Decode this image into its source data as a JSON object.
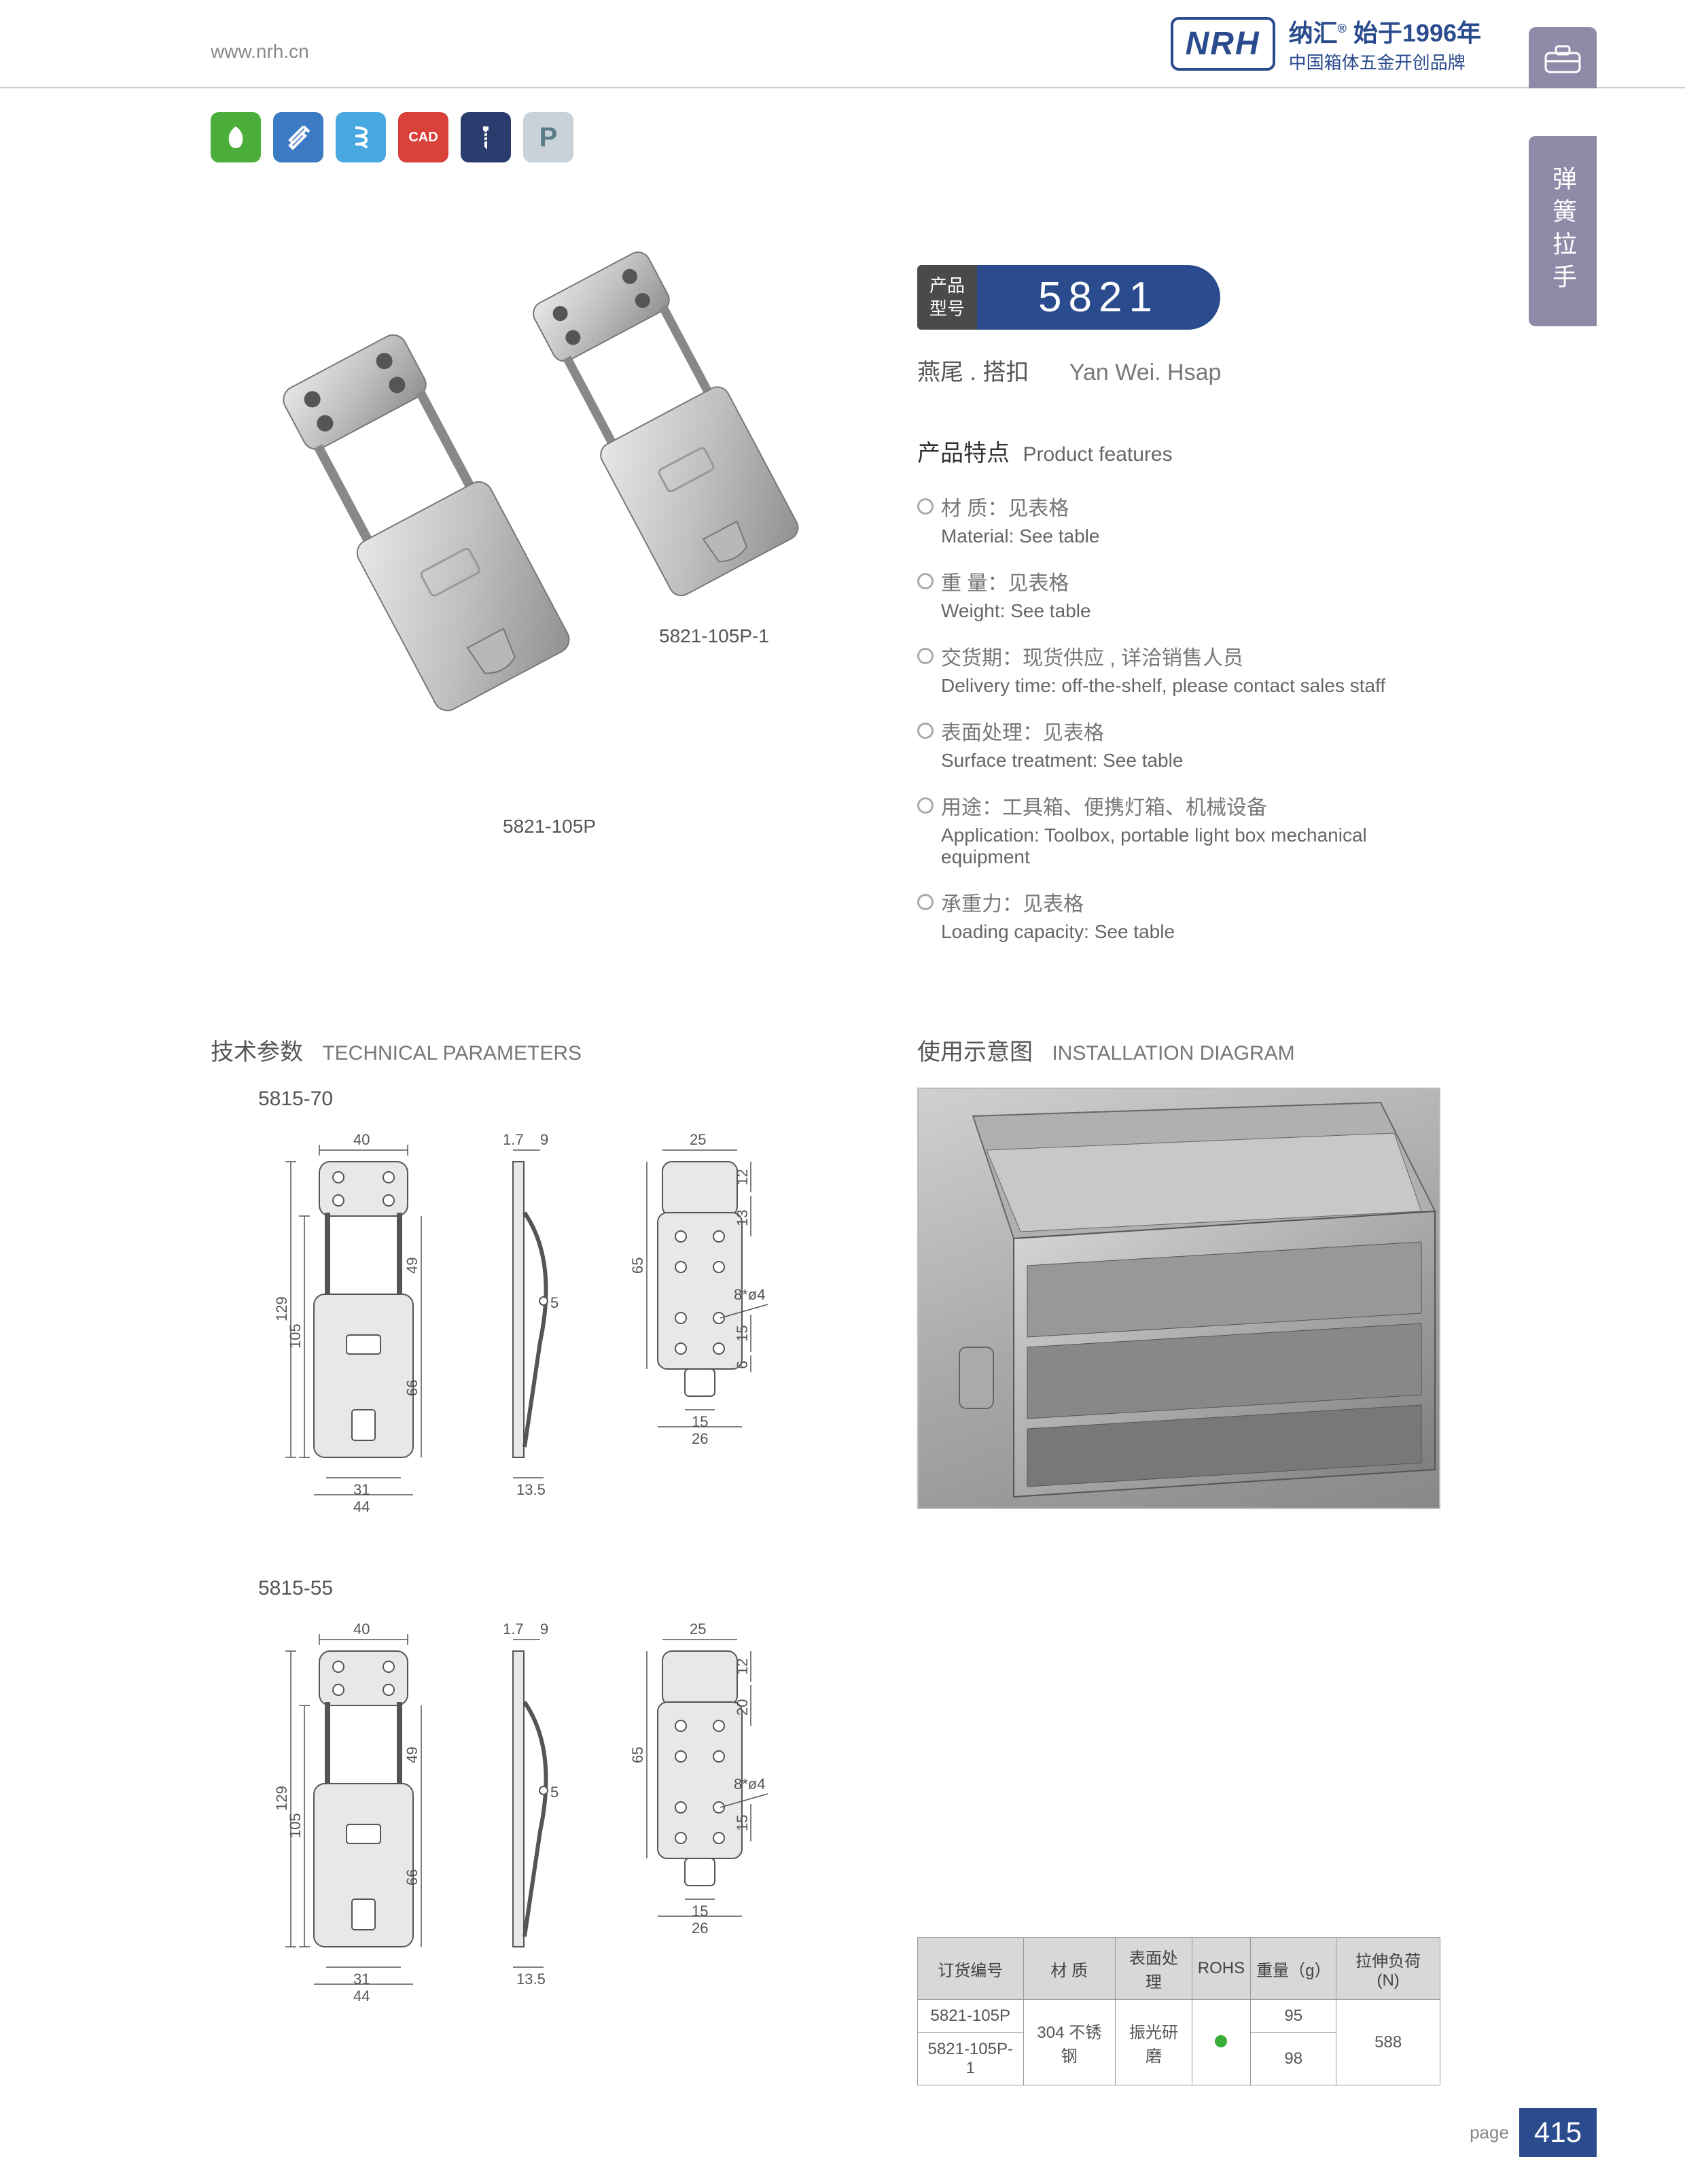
{
  "header": {
    "url": "www.nrh.cn",
    "logo_text": "NRH",
    "brand_cn": "纳汇",
    "brand_year": "始于1996年",
    "brand_sub": "中国箱体五金开创品牌"
  },
  "side_tab_label": "弹簧拉手",
  "icon_row": [
    {
      "bg": "#4cae3a",
      "glyph": "leaf"
    },
    {
      "bg": "#3b7bc4",
      "glyph": "tools"
    },
    {
      "bg": "#4aa8e0",
      "glyph": "spring"
    },
    {
      "bg": "#d9413a",
      "glyph": "CAD"
    },
    {
      "bg": "#2a3b6e",
      "glyph": "screw"
    },
    {
      "bg": "#c8d2d8",
      "glyph": "P"
    }
  ],
  "product": {
    "model_label_1": "产品",
    "model_label_2": "型号",
    "model_number": "5821",
    "name_cn": "燕尾 . 搭扣",
    "name_en": "Yan Wei. Hsap",
    "render_label_1": "5821-105P-1",
    "render_label_2": "5821-105P"
  },
  "features": {
    "title_cn": "产品特点",
    "title_en": "Product features",
    "items": [
      {
        "cn": "材 质：见表格",
        "en": "Material: See table"
      },
      {
        "cn": "重 量：见表格",
        "en": "Weight: See table"
      },
      {
        "cn": "交货期：现货供应 , 详洽销售人员",
        "en": "Delivery time: off-the-shelf, please contact sales staff"
      },
      {
        "cn": "表面处理：见表格",
        "en": "Surface treatment: See table"
      },
      {
        "cn": "用途：工具箱、便携灯箱、机械设备",
        "en": "Application: Toolbox, portable light box mechanical equipment"
      },
      {
        "cn": "承重力：见表格",
        "en": "Loading capacity: See table"
      }
    ]
  },
  "sections": {
    "tech_cn": "技术参数",
    "tech_en": "TECHNICAL PARAMETERS",
    "install_cn": "使用示意图",
    "install_en": "INSTALLATION DIAGRAM"
  },
  "drawings": [
    {
      "label": "5815-70",
      "dims": {
        "w1": "40",
        "w2": "9",
        "w3": "25",
        "w4": "44",
        "w5": "31",
        "w6": "13.5",
        "w7": "15",
        "w8": "26",
        "h1": "129",
        "h2": "105",
        "h3": "49",
        "h4": "66",
        "h5": "65",
        "h6": "12",
        "h7": "13",
        "h8": "15",
        "h9": "6",
        "d1": "1.7",
        "d2": "8*ø4",
        "d3": "5"
      }
    },
    {
      "label": "5815-55",
      "dims": {
        "w1": "40",
        "w2": "9",
        "w3": "25",
        "w4": "44",
        "w5": "31",
        "w6": "13.5",
        "w7": "15",
        "w8": "26",
        "h1": "129",
        "h2": "105",
        "h3": "49",
        "h4": "66",
        "h5": "65",
        "h6": "12",
        "h7": "20",
        "h8": "15",
        "d1": "1.7",
        "d2": "8*ø4",
        "d3": "5"
      }
    }
  ],
  "spec_table": {
    "headers": [
      "订货编号",
      "材 质",
      "表面处理",
      "ROHS",
      "重量（g）",
      "拉伸负荷 (N)"
    ],
    "rows": [
      {
        "code": "5821-105P",
        "material": "304 不锈钢",
        "surface": "振光研磨",
        "rohs": true,
        "weight": "95",
        "load": "588"
      },
      {
        "code": "5821-105P-1",
        "material": "",
        "surface": "",
        "rohs": "",
        "weight": "98",
        "load": ""
      }
    ]
  },
  "footer": {
    "page_label": "page",
    "page_num": "415"
  },
  "colors": {
    "brand_blue": "#2a4b8d",
    "side_purple": "#9189a8",
    "table_header": "#d8d8d8",
    "rohs_green": "#3aae3a"
  }
}
